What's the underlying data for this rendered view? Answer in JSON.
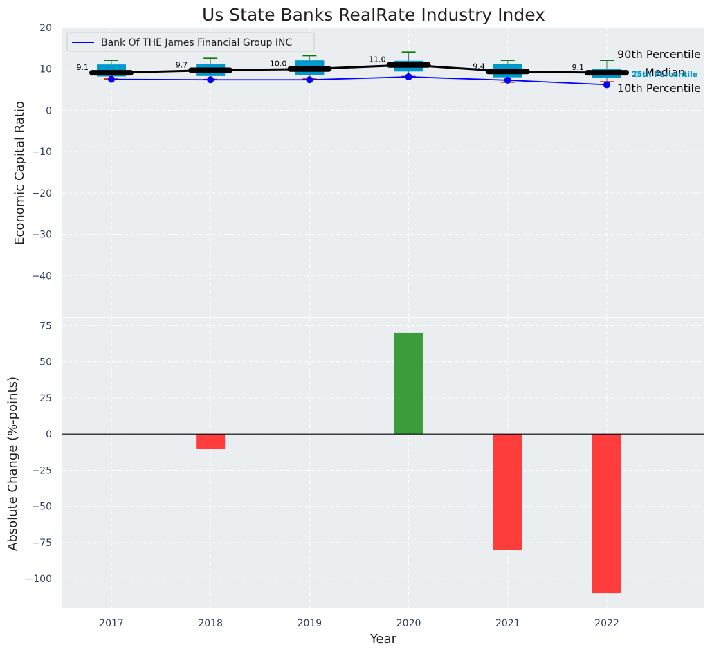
{
  "chart_data": [
    {
      "type": "box-line",
      "title": "Us State Banks RealRate Industry Index",
      "ylabel": "Economic Capital Ratio",
      "ylim": [
        -50,
        20
      ],
      "yticks": [
        20,
        10,
        0,
        -10,
        -20,
        -30,
        -40
      ],
      "grid": true,
      "categories": [
        "2017",
        "2018",
        "2019",
        "2020",
        "2021",
        "2022"
      ],
      "percentiles": {
        "p10": [
          7.6,
          7.5,
          7.6,
          8.2,
          6.8,
          6.9
        ],
        "p25": [
          8.2,
          8.3,
          8.6,
          9.4,
          8.0,
          7.9
        ],
        "p75": [
          11.1,
          11.2,
          12.1,
          12.0,
          11.2,
          10.1
        ],
        "p90": [
          12.1,
          12.6,
          13.2,
          14.1,
          12.1,
          12.1
        ]
      },
      "median_series": {
        "name": "Median",
        "values": [
          9.1,
          9.7,
          10.0,
          11.0,
          9.4,
          9.1
        ],
        "labels": [
          "9.1",
          "9.7",
          "10.0",
          "11.0",
          "9.4",
          "9.1"
        ]
      },
      "bank_series": {
        "name": "Bank Of THE James Financial Group INC",
        "values": [
          7.5,
          7.4,
          7.4,
          8.1,
          7.3,
          6.2
        ]
      },
      "legend": {
        "position": "top-left",
        "entries": [
          "Bank Of THE James Financial Group INC"
        ]
      },
      "annotations": {
        "p90": "90th Percentile",
        "median": "Median",
        "p10": "10th Percentile",
        "p75": "75th Percentile",
        "p25": "25th Percentile"
      }
    },
    {
      "type": "bar",
      "xlabel": "Year",
      "ylabel": "Absolute Change (%-points)",
      "ylim": [
        -120,
        80
      ],
      "yticks": [
        75,
        50,
        25,
        0,
        -25,
        -50,
        -75,
        -100
      ],
      "grid": true,
      "categories": [
        "2017",
        "2018",
        "2019",
        "2020",
        "2021",
        "2022"
      ],
      "values": [
        0,
        -10,
        0,
        70,
        -80,
        -110
      ]
    }
  ],
  "colors": {
    "background": "#eaeef0",
    "grid": "#ffffff",
    "box": "#0099cc",
    "p90_whisker": "#008000",
    "p10_whisker": "#dd0000",
    "median": "#000000",
    "bank": "#0000ff",
    "positive": "#3c9c3c",
    "negative": "#ff3d3d",
    "tick_text": "#2e3f5a",
    "percentile_label": "#0099cc"
  }
}
